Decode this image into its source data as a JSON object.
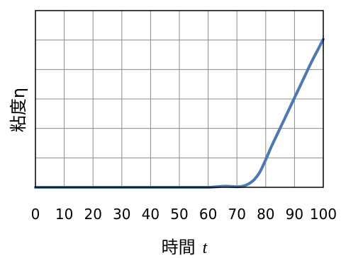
{
  "chart_data": {
    "type": "line",
    "xlabel_text": "時間",
    "xlabel_var": "t",
    "ylabel": "粘度η",
    "xlim": [
      0,
      100
    ],
    "x_ticks": [
      0,
      10,
      20,
      30,
      40,
      50,
      60,
      70,
      80,
      90,
      100
    ],
    "grid": true,
    "series_color": "#4a78b8",
    "series": [
      {
        "x": [
          0,
          10,
          20,
          30,
          40,
          50,
          55,
          60,
          63,
          66,
          70,
          72,
          74,
          76,
          78,
          80,
          82,
          84,
          86,
          88,
          90,
          92,
          94,
          96,
          98,
          100
        ],
        "y": [
          0,
          0,
          0,
          0,
          0,
          0,
          0,
          0,
          0.05,
          0.1,
          0.05,
          0.1,
          0.3,
          0.7,
          1.4,
          2.5,
          3.7,
          4.8,
          5.9,
          7.0,
          8.1,
          9.2,
          10.3,
          11.4,
          12.4,
          13.4
        ]
      }
    ],
    "ylim": [
      0,
      16
    ]
  }
}
